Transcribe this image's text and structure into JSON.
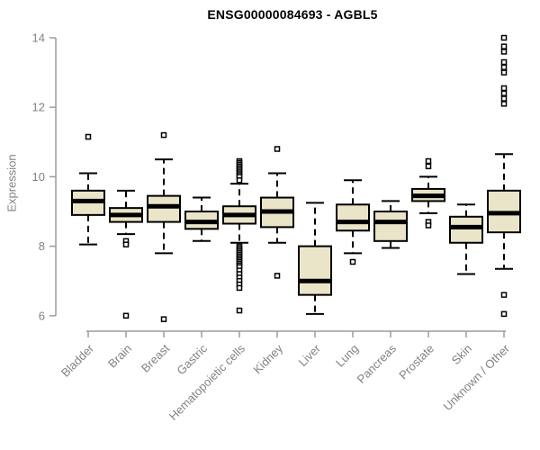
{
  "chart_data": {
    "type": "boxplot",
    "title": "ENSG00000084693 - AGBL5",
    "xlabel": "",
    "ylabel": "Expression",
    "yticks": [
      "6",
      "8",
      "10",
      "12",
      "14"
    ],
    "ylim": [
      5.6,
      14.3
    ],
    "grid": false,
    "legend": "none",
    "categories": [
      "Bladder",
      "Brain",
      "Breast",
      "Gastric",
      "Hematopoietic cells",
      "Kidney",
      "Liver",
      "Lung",
      "Pancreas",
      "Prostate",
      "Skin",
      "Unknown / Other"
    ],
    "boxes": [
      {
        "category": "Bladder",
        "low": 8.05,
        "q1": 8.9,
        "median": 9.3,
        "q3": 9.6,
        "high": 10.1,
        "outliers": [
          11.15
        ]
      },
      {
        "category": "Brain",
        "low": 8.35,
        "q1": 8.7,
        "median": 8.9,
        "q3": 9.1,
        "high": 9.6,
        "outliers": [
          8.15,
          8.05,
          6.0
        ]
      },
      {
        "category": "Breast",
        "low": 7.8,
        "q1": 8.7,
        "median": 9.15,
        "q3": 9.45,
        "high": 10.5,
        "outliers": [
          11.2,
          5.9
        ]
      },
      {
        "category": "Gastric",
        "low": 8.15,
        "q1": 8.5,
        "median": 8.7,
        "q3": 9.0,
        "high": 9.4,
        "outliers": []
      },
      {
        "category": "Hematopoietic cells",
        "low": 8.1,
        "q1": 8.65,
        "median": 8.9,
        "q3": 9.15,
        "high": 9.8,
        "outliers": [
          10.45,
          10.4,
          10.35,
          10.3,
          10.25,
          10.2,
          10.15,
          10.1,
          10.05,
          10.0,
          9.9,
          8.0,
          7.95,
          7.9,
          7.85,
          7.8,
          7.75,
          7.7,
          7.65,
          7.6,
          7.55,
          7.5,
          7.45,
          7.4,
          7.3,
          7.2,
          7.1,
          7.0,
          6.9,
          6.8,
          6.15
        ]
      },
      {
        "category": "Kidney",
        "low": 8.1,
        "q1": 8.55,
        "median": 9.0,
        "q3": 9.4,
        "high": 10.1,
        "outliers": [
          10.8,
          7.15
        ]
      },
      {
        "category": "Liver",
        "low": 6.05,
        "q1": 6.6,
        "median": 7.0,
        "q3": 8.0,
        "high": 9.25,
        "outliers": []
      },
      {
        "category": "Lung",
        "low": 7.8,
        "q1": 8.45,
        "median": 8.7,
        "q3": 9.2,
        "high": 9.9,
        "outliers": [
          7.55
        ]
      },
      {
        "category": "Pancreas",
        "low": 7.95,
        "q1": 8.15,
        "median": 8.7,
        "q3": 9.0,
        "high": 9.3,
        "outliers": []
      },
      {
        "category": "Prostate",
        "low": 8.95,
        "q1": 9.3,
        "median": 9.45,
        "q3": 9.65,
        "high": 10.0,
        "outliers": [
          10.45,
          10.3,
          8.7,
          8.6
        ]
      },
      {
        "category": "Skin",
        "low": 7.2,
        "q1": 8.1,
        "median": 8.55,
        "q3": 8.85,
        "high": 9.2,
        "outliers": []
      },
      {
        "category": "Unknown / Other",
        "low": 7.35,
        "q1": 8.4,
        "median": 8.95,
        "q3": 9.6,
        "high": 10.65,
        "outliers": [
          14.0,
          13.75,
          13.6,
          13.3,
          13.15,
          13.0,
          12.55,
          12.4,
          12.25,
          12.1,
          6.6,
          6.05
        ]
      }
    ],
    "colors": {
      "box_fill": "#EAE4C8",
      "box_border": "#000000",
      "median": "#000000",
      "whisker": "#000000",
      "outlier_fill": "#ffffff",
      "axis": "#9C9C9C",
      "tick_label": "#828282",
      "title": "#000000"
    }
  }
}
